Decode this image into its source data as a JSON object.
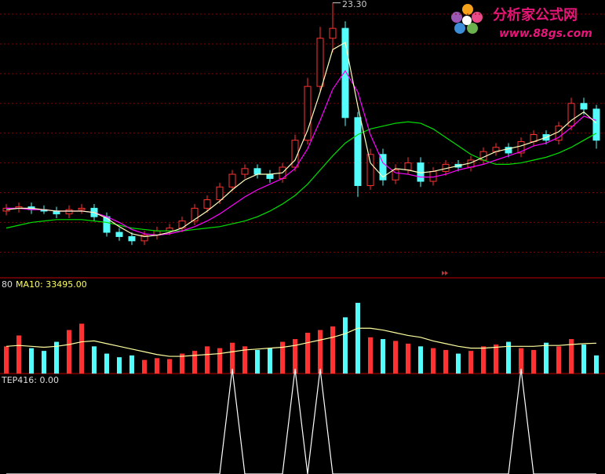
{
  "chart_data": [
    {
      "type": "candlestick",
      "peak_label": "23.30",
      "up_color": "#ff3232",
      "down_color": "#54fcfc",
      "ylim": [
        4,
        23.5
      ],
      "ygrid": [
        22.5,
        20.4,
        18.3,
        16.2,
        14.1,
        12.0,
        9.9,
        7.8,
        5.7
      ],
      "grid_color": "#8c0000",
      "open": [
        8.6,
        8.8,
        8.9,
        8.7,
        8.6,
        8.4,
        8.7,
        8.8,
        8.2,
        7.1,
        6.8,
        6.5,
        6.9,
        7.2,
        7.4,
        7.9,
        8.8,
        9.4,
        10.3,
        11.2,
        11.6,
        11.2,
        10.9,
        11.7,
        13.6,
        17.4,
        20.8,
        21.5,
        15.2,
        10.4,
        12.6,
        10.8,
        11.5,
        12.0,
        10.7,
        11.4,
        11.9,
        11.7,
        12.2,
        12.8,
        13.1,
        12.7,
        13.5,
        14.0,
        13.6,
        14.6,
        16.2,
        15.8
      ],
      "high": [
        9.1,
        9.2,
        9.2,
        9.0,
        8.9,
        9.0,
        9.1,
        9.1,
        8.5,
        7.4,
        7.1,
        7.2,
        7.5,
        7.7,
        8.2,
        9.1,
        9.7,
        10.6,
        11.5,
        11.9,
        11.9,
        11.5,
        12.0,
        14.0,
        18.0,
        21.6,
        23.3,
        22.0,
        15.6,
        13.0,
        13.0,
        11.9,
        12.4,
        12.4,
        11.7,
        12.2,
        12.2,
        12.5,
        13.1,
        13.4,
        13.4,
        13.8,
        14.3,
        14.3,
        14.9,
        16.6,
        16.6,
        16.1
      ],
      "low": [
        8.3,
        8.5,
        8.4,
        8.4,
        8.1,
        8.1,
        8.4,
        7.9,
        6.8,
        6.5,
        6.2,
        6.2,
        6.6,
        6.9,
        7.1,
        7.6,
        8.5,
        9.1,
        10.0,
        10.9,
        10.9,
        10.6,
        10.6,
        11.4,
        13.3,
        17.0,
        19.8,
        14.6,
        9.6,
        10.1,
        10.4,
        10.5,
        11.2,
        10.3,
        10.4,
        11.1,
        11.4,
        11.4,
        11.9,
        12.5,
        12.4,
        12.4,
        13.2,
        13.3,
        13.3,
        14.3,
        15.4,
        13.0
      ],
      "close": [
        8.8,
        8.9,
        8.7,
        8.6,
        8.4,
        8.7,
        8.8,
        8.2,
        7.1,
        6.8,
        6.5,
        6.9,
        7.2,
        7.4,
        7.9,
        8.8,
        9.4,
        10.3,
        11.2,
        11.6,
        11.2,
        10.9,
        11.7,
        13.6,
        17.4,
        20.8,
        21.5,
        15.2,
        10.4,
        12.6,
        10.8,
        11.5,
        12.0,
        10.7,
        11.4,
        11.9,
        11.7,
        12.2,
        12.8,
        13.1,
        12.7,
        13.5,
        14.0,
        13.6,
        14.6,
        16.2,
        15.8,
        13.6
      ],
      "series": [
        {
          "color": "#00e000",
          "values": [
            7.4,
            7.6,
            7.8,
            7.9,
            8.0,
            8.0,
            8.0,
            7.9,
            7.8,
            7.6,
            7.4,
            7.3,
            7.2,
            7.2,
            7.2,
            7.3,
            7.4,
            7.5,
            7.7,
            7.9,
            8.2,
            8.6,
            9.1,
            9.7,
            10.5,
            11.5,
            12.5,
            13.4,
            14.0,
            14.4,
            14.6,
            14.8,
            14.9,
            14.8,
            14.4,
            13.8,
            13.2,
            12.6,
            12.2,
            11.9,
            11.9,
            12.0,
            12.2,
            12.4,
            12.7,
            13.1,
            13.6,
            14.1
          ]
        },
        {
          "color": "#ff00ff",
          "values": [
            8.8,
            8.8,
            8.7,
            8.7,
            8.6,
            8.6,
            8.6,
            8.5,
            8.2,
            7.8,
            7.3,
            7.0,
            6.9,
            7.0,
            7.2,
            7.5,
            7.9,
            8.4,
            9.0,
            9.6,
            10.1,
            10.5,
            10.9,
            11.6,
            13.0,
            15.0,
            17.2,
            18.5,
            17.0,
            14.0,
            12.0,
            11.3,
            11.2,
            11.0,
            11.0,
            11.2,
            11.5,
            11.7,
            11.9,
            12.2,
            12.5,
            12.8,
            13.2,
            13.4,
            13.8,
            14.5,
            15.3,
            15.0
          ]
        },
        {
          "color": "#ffffc0",
          "values": [
            8.7,
            8.8,
            8.8,
            8.7,
            8.6,
            8.6,
            8.6,
            8.5,
            8.1,
            7.5,
            7.0,
            6.8,
            6.9,
            7.1,
            7.4,
            8.0,
            8.6,
            9.3,
            10.1,
            10.8,
            11.2,
            11.2,
            11.3,
            12.2,
            14.3,
            17.0,
            20.0,
            20.5,
            16.0,
            12.0,
            11.0,
            11.6,
            11.5,
            11.3,
            11.4,
            11.6,
            11.8,
            12.0,
            12.4,
            12.8,
            13.0,
            13.2,
            13.5,
            13.8,
            14.2,
            15.0,
            15.6,
            14.8
          ]
        }
      ]
    },
    {
      "type": "bar",
      "header": [
        "80",
        "MA10: 33495.00"
      ],
      "ylim": [
        0,
        90000
      ],
      "values": [
        30000,
        42000,
        28000,
        25000,
        35000,
        48000,
        55000,
        30000,
        22000,
        18000,
        20000,
        15000,
        17000,
        16000,
        22000,
        25000,
        30000,
        28000,
        34000,
        30000,
        26000,
        28000,
        35000,
        38000,
        45000,
        48000,
        52000,
        62000,
        78000,
        40000,
        38000,
        36000,
        33000,
        30000,
        28000,
        26000,
        22000,
        25000,
        30000,
        32000,
        35000,
        28000,
        26000,
        34000,
        30000,
        38000,
        32000,
        20000
      ],
      "series": [
        {
          "color": "#ffffa0",
          "values": [
            30000,
            31000,
            30000,
            29000,
            30000,
            32000,
            35000,
            36000,
            33000,
            30000,
            27000,
            24000,
            21000,
            19000,
            19000,
            20000,
            21000,
            22000,
            24000,
            26000,
            27000,
            28000,
            29000,
            31000,
            34000,
            37000,
            40000,
            44000,
            50000,
            50000,
            48000,
            45000,
            42000,
            40000,
            36000,
            33000,
            30000,
            28000,
            28000,
            29000,
            30000,
            30000,
            30000,
            31000,
            31000,
            32000,
            33000,
            33495
          ]
        }
      ]
    },
    {
      "type": "line",
      "header": "TEP416: 0.00",
      "ylim": [
        0,
        1
      ],
      "color": "#ffffff",
      "values": [
        0,
        0,
        0,
        0,
        0,
        0,
        0,
        0,
        0,
        0,
        0,
        0,
        0,
        0,
        0,
        0,
        0,
        0,
        1,
        0,
        0,
        0,
        0,
        1,
        0,
        1,
        0,
        0,
        0,
        0,
        0,
        0,
        0,
        0,
        0,
        0,
        0,
        0,
        0,
        0,
        0,
        1,
        0,
        0,
        0,
        0,
        0,
        0
      ]
    }
  ],
  "watermark": {
    "title": "分析家公式网",
    "url": "www.88gs.com"
  }
}
